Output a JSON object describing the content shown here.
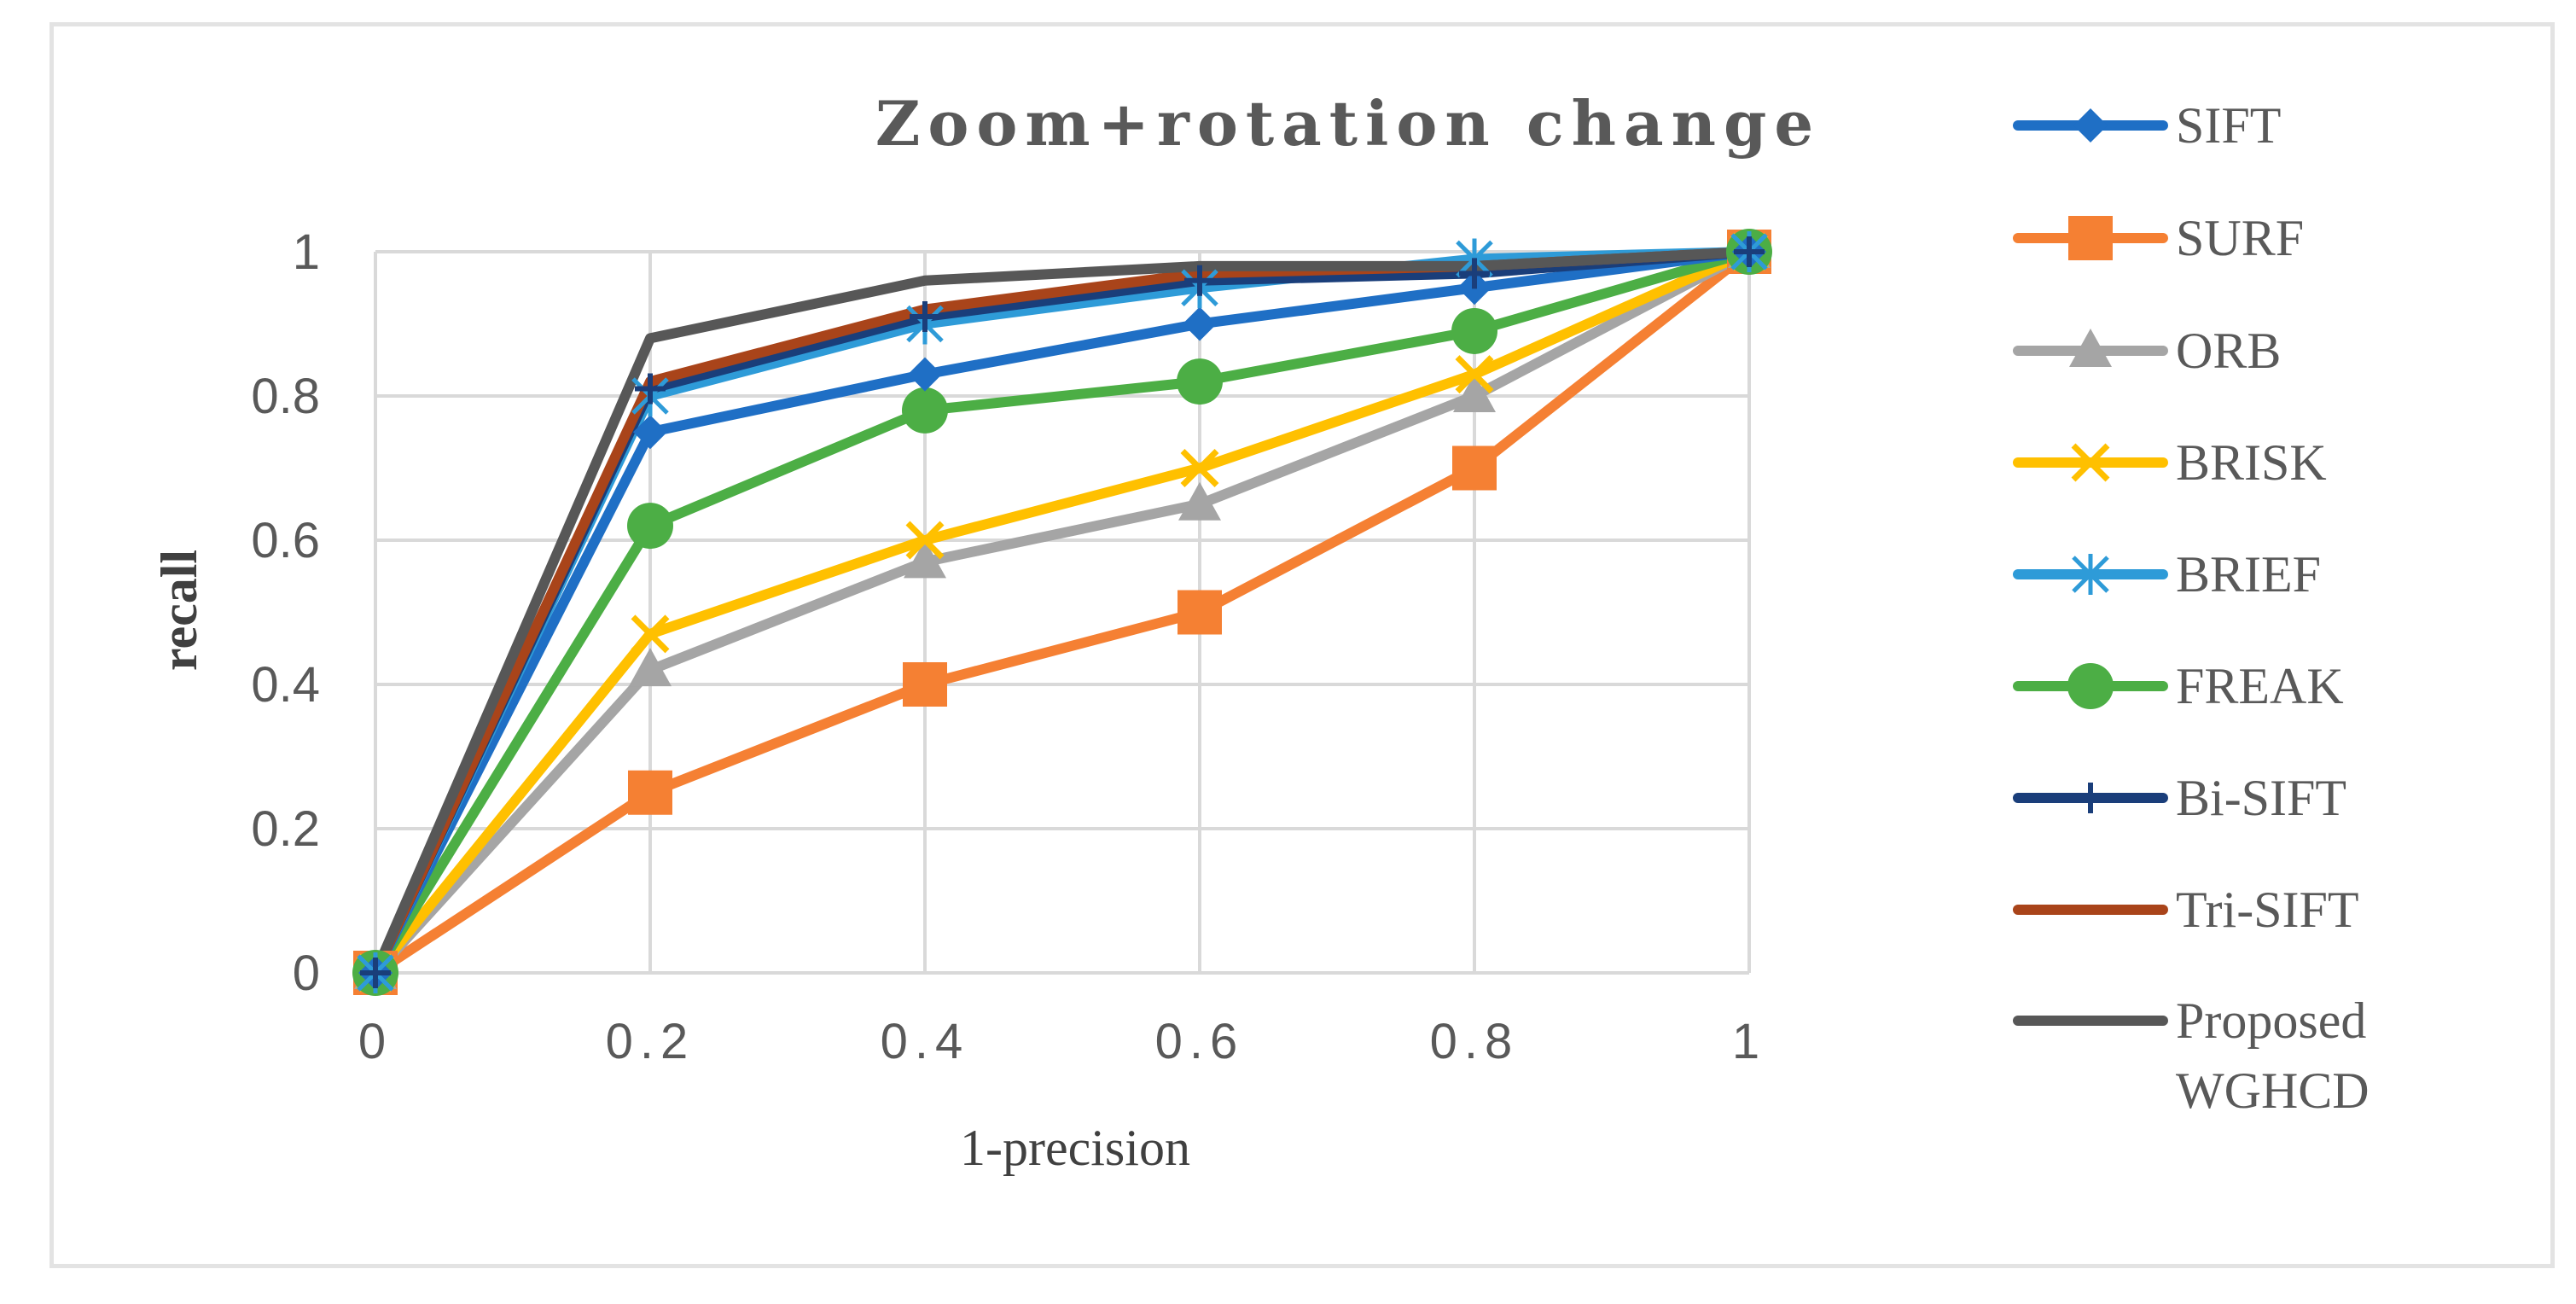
{
  "chart_data": {
    "type": "line",
    "title": "Zoom+rotation change",
    "xlabel": "1-precision",
    "ylabel": "recall",
    "x": [
      0,
      0.2,
      0.4,
      0.6,
      0.8,
      1
    ],
    "x_tick_labels": [
      "0",
      "0.2",
      "0.4",
      "0.6",
      "0.8",
      "1"
    ],
    "y_tick_labels": [
      "0",
      "0.2",
      "0.4",
      "0.6",
      "0.8",
      "1"
    ],
    "xlim": [
      0,
      1
    ],
    "ylim": [
      0,
      1
    ],
    "grid": true,
    "legend_position": "right",
    "series": [
      {
        "name": "SIFT",
        "color": "#1f6fc5",
        "marker": "diamond",
        "values": [
          0,
          0.75,
          0.83,
          0.9,
          0.95,
          1.0
        ]
      },
      {
        "name": "SURF",
        "color": "#f58033",
        "marker": "square",
        "values": [
          0,
          0.25,
          0.4,
          0.5,
          0.7,
          1.0
        ]
      },
      {
        "name": "ORB",
        "color": "#a5a5a5",
        "marker": "triangle",
        "values": [
          0,
          0.42,
          0.57,
          0.65,
          0.8,
          1.0
        ]
      },
      {
        "name": "BRISK",
        "color": "#ffc000",
        "marker": "x",
        "values": [
          0,
          0.47,
          0.6,
          0.7,
          0.83,
          1.0
        ]
      },
      {
        "name": "BRIEF",
        "color": "#2e9bd8",
        "marker": "star",
        "values": [
          0,
          0.8,
          0.9,
          0.95,
          0.99,
          1.0
        ]
      },
      {
        "name": "FREAK",
        "color": "#4cae45",
        "marker": "circle",
        "values": [
          0,
          0.62,
          0.78,
          0.82,
          0.89,
          1.0
        ]
      },
      {
        "name": "Bi-SIFT",
        "color": "#1a3e7a",
        "marker": "plus",
        "values": [
          0,
          0.81,
          0.91,
          0.96,
          0.97,
          1.0
        ]
      },
      {
        "name": "Tri-SIFT",
        "color": "#a9441a",
        "marker": "none",
        "values": [
          0,
          0.82,
          0.92,
          0.97,
          0.98,
          1.0
        ]
      },
      {
        "name": "Proposed WGHCD",
        "label_lines": [
          "Proposed",
          "WGHCD"
        ],
        "color": "#575757",
        "marker": "none",
        "values": [
          0,
          0.88,
          0.96,
          0.98,
          0.98,
          1.0
        ]
      }
    ]
  }
}
